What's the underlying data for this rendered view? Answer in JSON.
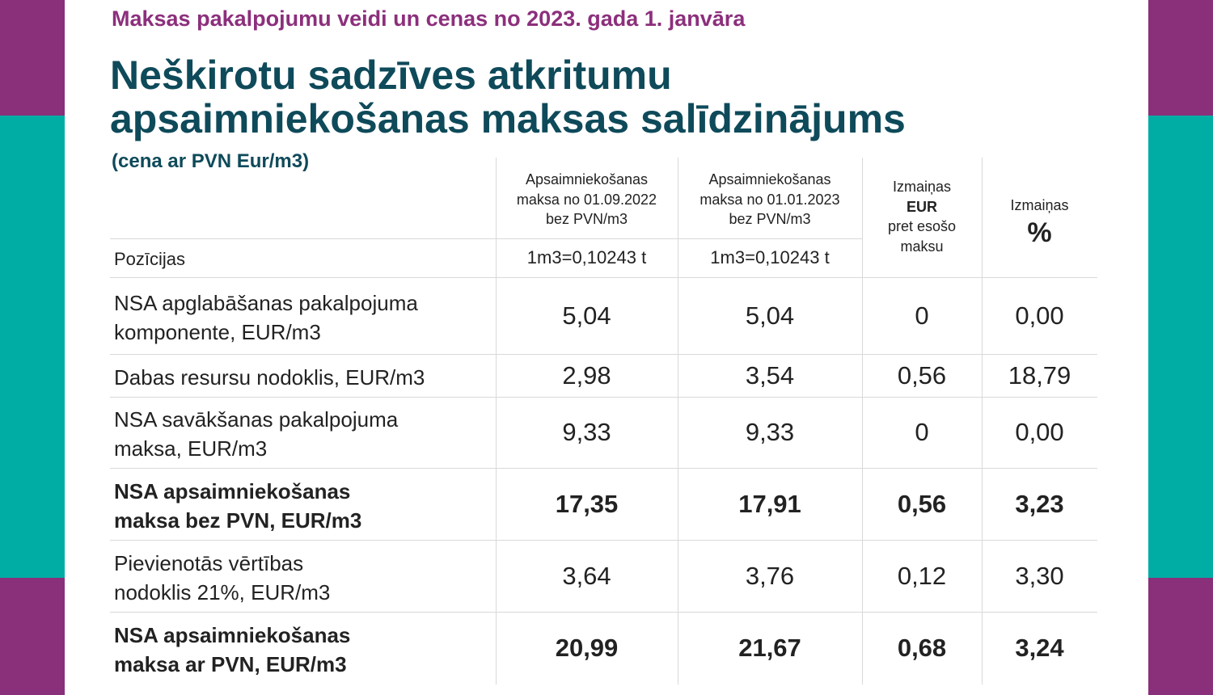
{
  "header": {
    "subtitle": "Maksas pakalpojumu veidi un cenas no 2023. gada 1. janvāra",
    "title_lines": [
      "Neškirotu sadzīves atkritumu",
      "apsaimniekošanas maksas salīdzinājums"
    ],
    "note": "(cena ar PVN Eur/m3)"
  },
  "table": {
    "columns": [
      {
        "lines": [
          "Pozīcijas"
        ]
      },
      {
        "lines": [
          "Apsaimniekošanas",
          "maksa no 01.09.2022",
          "bez PVN/m3"
        ],
        "sub": "1m3=0,10243 t"
      },
      {
        "lines": [
          "Apsaimniekošanas",
          "maksa no 01.01.2023",
          "bez PVN/m3"
        ],
        "sub": "1m3=0,10243 t"
      },
      {
        "lines": [
          "Izmaiņas",
          "EUR",
          "pret esošo",
          "maksu"
        ],
        "bold_line": 1
      },
      {
        "lines": [
          "Izmaiņas",
          "%"
        ],
        "bold_line": 1
      }
    ],
    "rows": [
      {
        "label": [
          "NSA apglabāšanas pakalpojuma",
          "komponente, EUR/m3"
        ],
        "cells": [
          "5,04",
          "5,04",
          "0",
          "0,00"
        ],
        "bold": false
      },
      {
        "label": [
          "Dabas resursu nodoklis, EUR/m3"
        ],
        "cells": [
          "2,98",
          "3,54",
          "0,56",
          "18,79"
        ],
        "bold": false
      },
      {
        "label": [
          "NSA savākšanas pakalpojuma",
          "maksa, EUR/m3"
        ],
        "cells": [
          "9,33",
          "9,33",
          "0",
          "0,00"
        ],
        "bold": false
      },
      {
        "label": [
          "NSA apsaimniekošanas",
          "maksa bez PVN, EUR/m3"
        ],
        "cells": [
          "17,35",
          "17,91",
          "0,56",
          "3,23"
        ],
        "bold": true
      },
      {
        "label": [
          "Pievienotās vērtības",
          "nodoklis 21%, EUR/m3"
        ],
        "cells": [
          "3,64",
          "3,76",
          "0,12",
          "3,30"
        ],
        "bold": false
      },
      {
        "label": [
          "NSA apsaimniekošanas",
          "maksa ar PVN, EUR/m3"
        ],
        "cells": [
          "20,99",
          "21,67",
          "0,68",
          "3,24"
        ],
        "bold": true
      }
    ]
  }
}
